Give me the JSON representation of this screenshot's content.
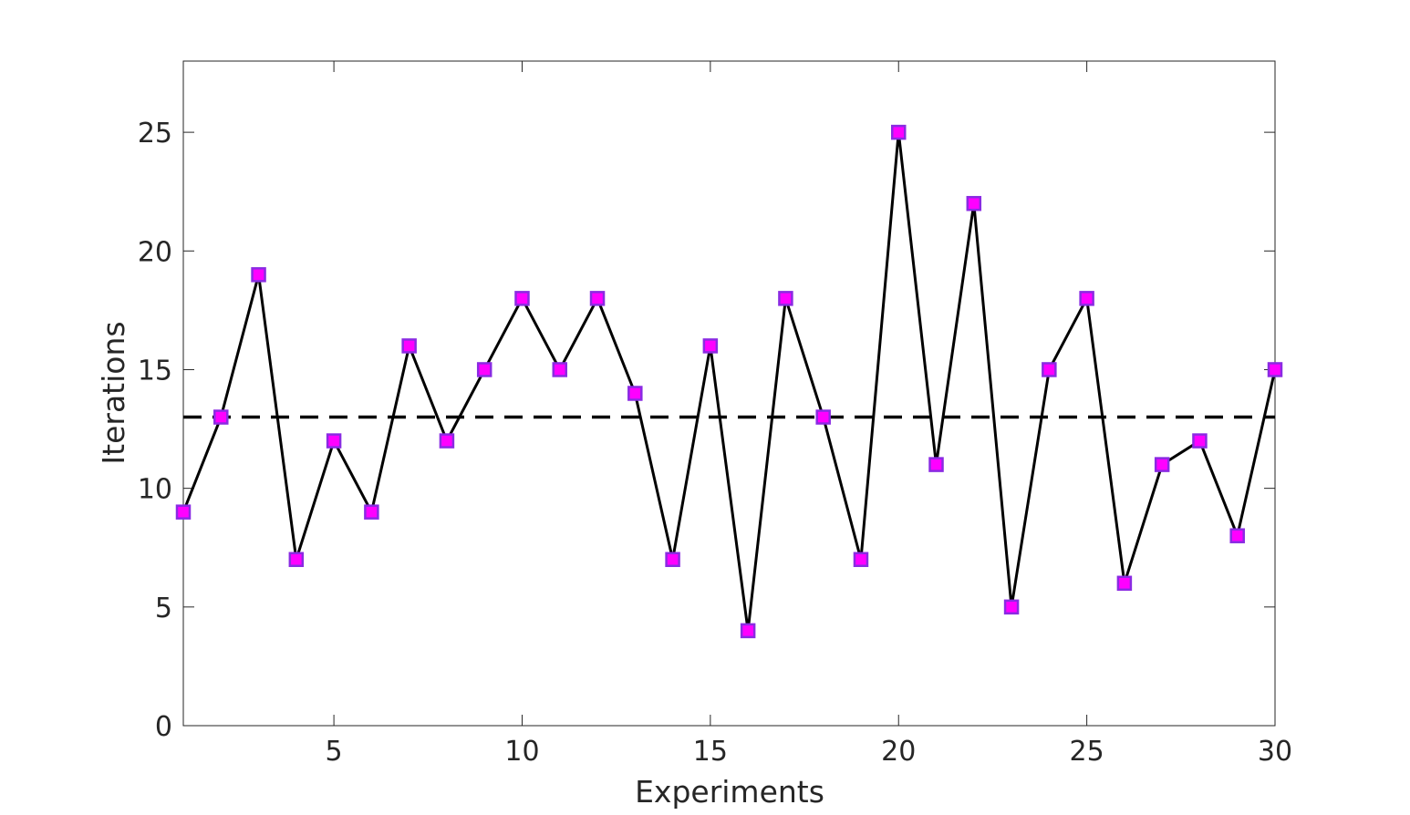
{
  "chart_data": {
    "type": "line",
    "title": "",
    "xlabel": "Experiments",
    "ylabel": "Iterations",
    "xlim": [
      1,
      30
    ],
    "ylim": [
      0,
      28
    ],
    "xticks": [
      5,
      10,
      15,
      20,
      25,
      30
    ],
    "yticks": [
      0,
      5,
      10,
      15,
      20,
      25
    ],
    "grid": false,
    "legend": "none",
    "series": [
      {
        "x": [
          1,
          2,
          3,
          4,
          5,
          6,
          7,
          8,
          9,
          10,
          11,
          12,
          13,
          14,
          15,
          16,
          17,
          18,
          19,
          20,
          21,
          22,
          23,
          24,
          25,
          26,
          27,
          28,
          29,
          30
        ],
        "values": [
          9,
          13,
          19,
          7,
          12,
          9,
          16,
          12,
          15,
          18,
          15,
          18,
          14,
          7,
          16,
          4,
          18,
          13,
          7,
          25,
          11,
          22,
          5,
          15,
          18,
          6,
          11,
          12,
          8,
          15
        ],
        "line_color": "#000000",
        "marker": "square",
        "marker_face": "#ff00ff",
        "marker_edge": "#8a2be2"
      }
    ],
    "reference_line": {
      "y": 13,
      "style": "dashed",
      "color": "#000000"
    }
  }
}
